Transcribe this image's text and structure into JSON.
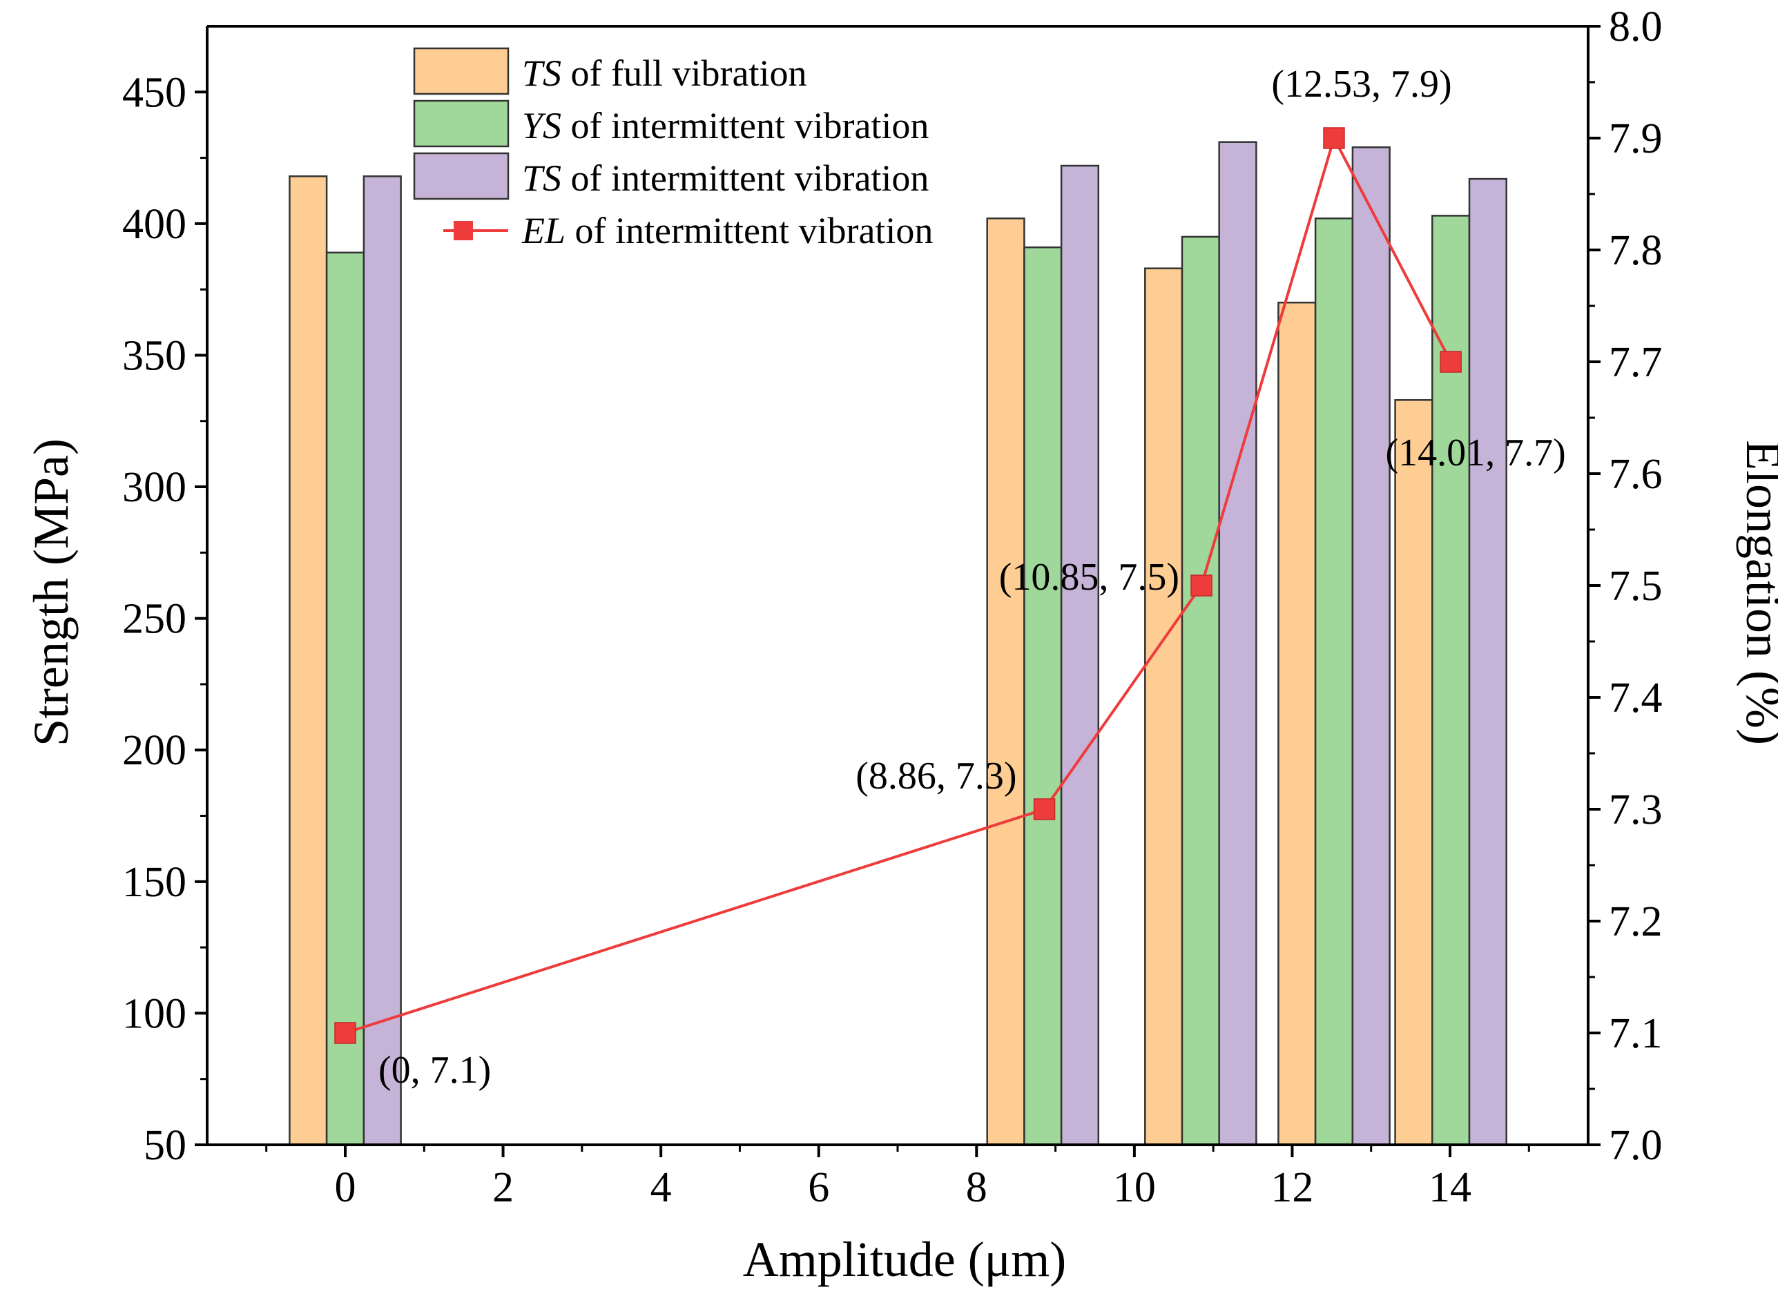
{
  "chart_data": {
    "type": "bar",
    "xlabel": "Amplitude (μm)",
    "ylabel": "Strength (MPa)",
    "y2label": "Elongation (%)",
    "xlim": [
      -1.75,
      15.75
    ],
    "ylim": [
      50,
      475
    ],
    "y2lim": [
      7.0,
      8.0
    ],
    "x_ticks": [
      0,
      2,
      4,
      6,
      8,
      10,
      12,
      14
    ],
    "y_ticks": [
      50,
      100,
      150,
      200,
      250,
      300,
      350,
      400,
      450
    ],
    "y2_ticks": [
      7.0,
      7.1,
      7.2,
      7.3,
      7.4,
      7.5,
      7.6,
      7.7,
      7.8,
      7.9,
      8.0
    ],
    "y2_tick_labels": [
      "7.0",
      "7.1",
      "7.2",
      "7.3",
      "7.4",
      "7.5",
      "7.6",
      "7.7",
      "7.8",
      "7.9",
      "8.0"
    ],
    "bar_width": 0.47,
    "grid": false,
    "legend_position": "top-center",
    "series": [
      {
        "name_prefix": "TS",
        "name_suffix": " of full vibration",
        "kind": "bar",
        "color": "#FDCD93",
        "x": [
          -0.47,
          8.37,
          10.37,
          12.06,
          13.54
        ],
        "values": [
          418,
          402,
          383,
          370,
          333
        ]
      },
      {
        "name_prefix": "YS",
        "name_suffix": " of intermittent vibration",
        "kind": "bar",
        "color": "#9FD89A",
        "x": [
          0,
          8.84,
          10.84,
          12.53,
          14.01
        ],
        "values": [
          389,
          391,
          395,
          402,
          403
        ]
      },
      {
        "name_prefix": "TS",
        "name_suffix": " of intermittent vibration",
        "kind": "bar",
        "color": "#C6B4D8",
        "x": [
          0.47,
          9.31,
          11.31,
          13.0,
          14.48
        ],
        "values": [
          418,
          422,
          431,
          429,
          417
        ]
      },
      {
        "name_prefix": "EL",
        "name_suffix": " of intermittent vibration",
        "kind": "line",
        "axis": "right",
        "color": "#EE3B3B",
        "x": [
          0,
          8.86,
          10.85,
          12.53,
          14.01
        ],
        "values": [
          7.1,
          7.3,
          7.5,
          7.9,
          7.7
        ],
        "labels": [
          "(0, 7.1)",
          "(8.86, 7.3)",
          "(10.85, 7.5)",
          "(12.53, 7.9)",
          "(14.01, 7.7)"
        ]
      }
    ]
  }
}
